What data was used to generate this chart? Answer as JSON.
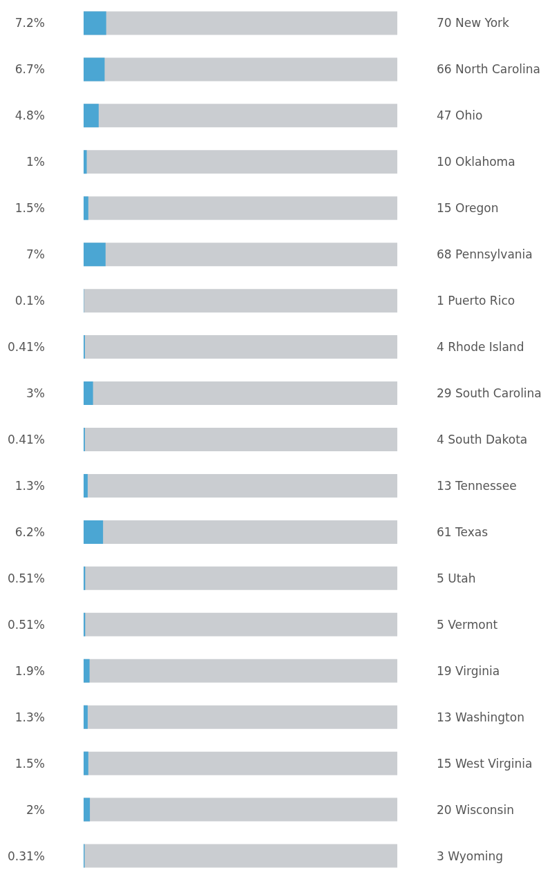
{
  "chart_data": {
    "type": "bar",
    "orientation": "horizontal",
    "xlim": [
      0,
      100
    ],
    "tick_labels": "y",
    "grid": false,
    "categories": [
      "70 New York",
      "66 North Carolina",
      "47 Ohio",
      "10 Oklahoma",
      "15 Oregon",
      "68 Pennsylvania",
      "1 Puerto Rico",
      "4 Rhode Island",
      "29 South Carolina",
      "4 South Dakota",
      "13 Tennessee",
      "61 Texas",
      "5 Utah",
      "5 Vermont",
      "19 Virginia",
      "13 Washington",
      "15 West Virginia",
      "20 Wisconsin",
      "3 Wyoming"
    ],
    "values": [
      7.2,
      6.7,
      4.8,
      1,
      1.5,
      7,
      0.1,
      0.41,
      3,
      0.41,
      1.3,
      6.2,
      0.51,
      0.51,
      1.9,
      1.3,
      1.5,
      2,
      0.31
    ],
    "value_labels": [
      "7.2%",
      "6.7%",
      "4.8%",
      "1%",
      "1.5%",
      "7%",
      "0.1%",
      "0.41%",
      "3%",
      "0.41%",
      "1.3%",
      "6.2%",
      "0.51%",
      "0.51%",
      "1.9%",
      "1.3%",
      "1.5%",
      "2%",
      "0.31%"
    ],
    "color": "#4ba6d3"
  }
}
